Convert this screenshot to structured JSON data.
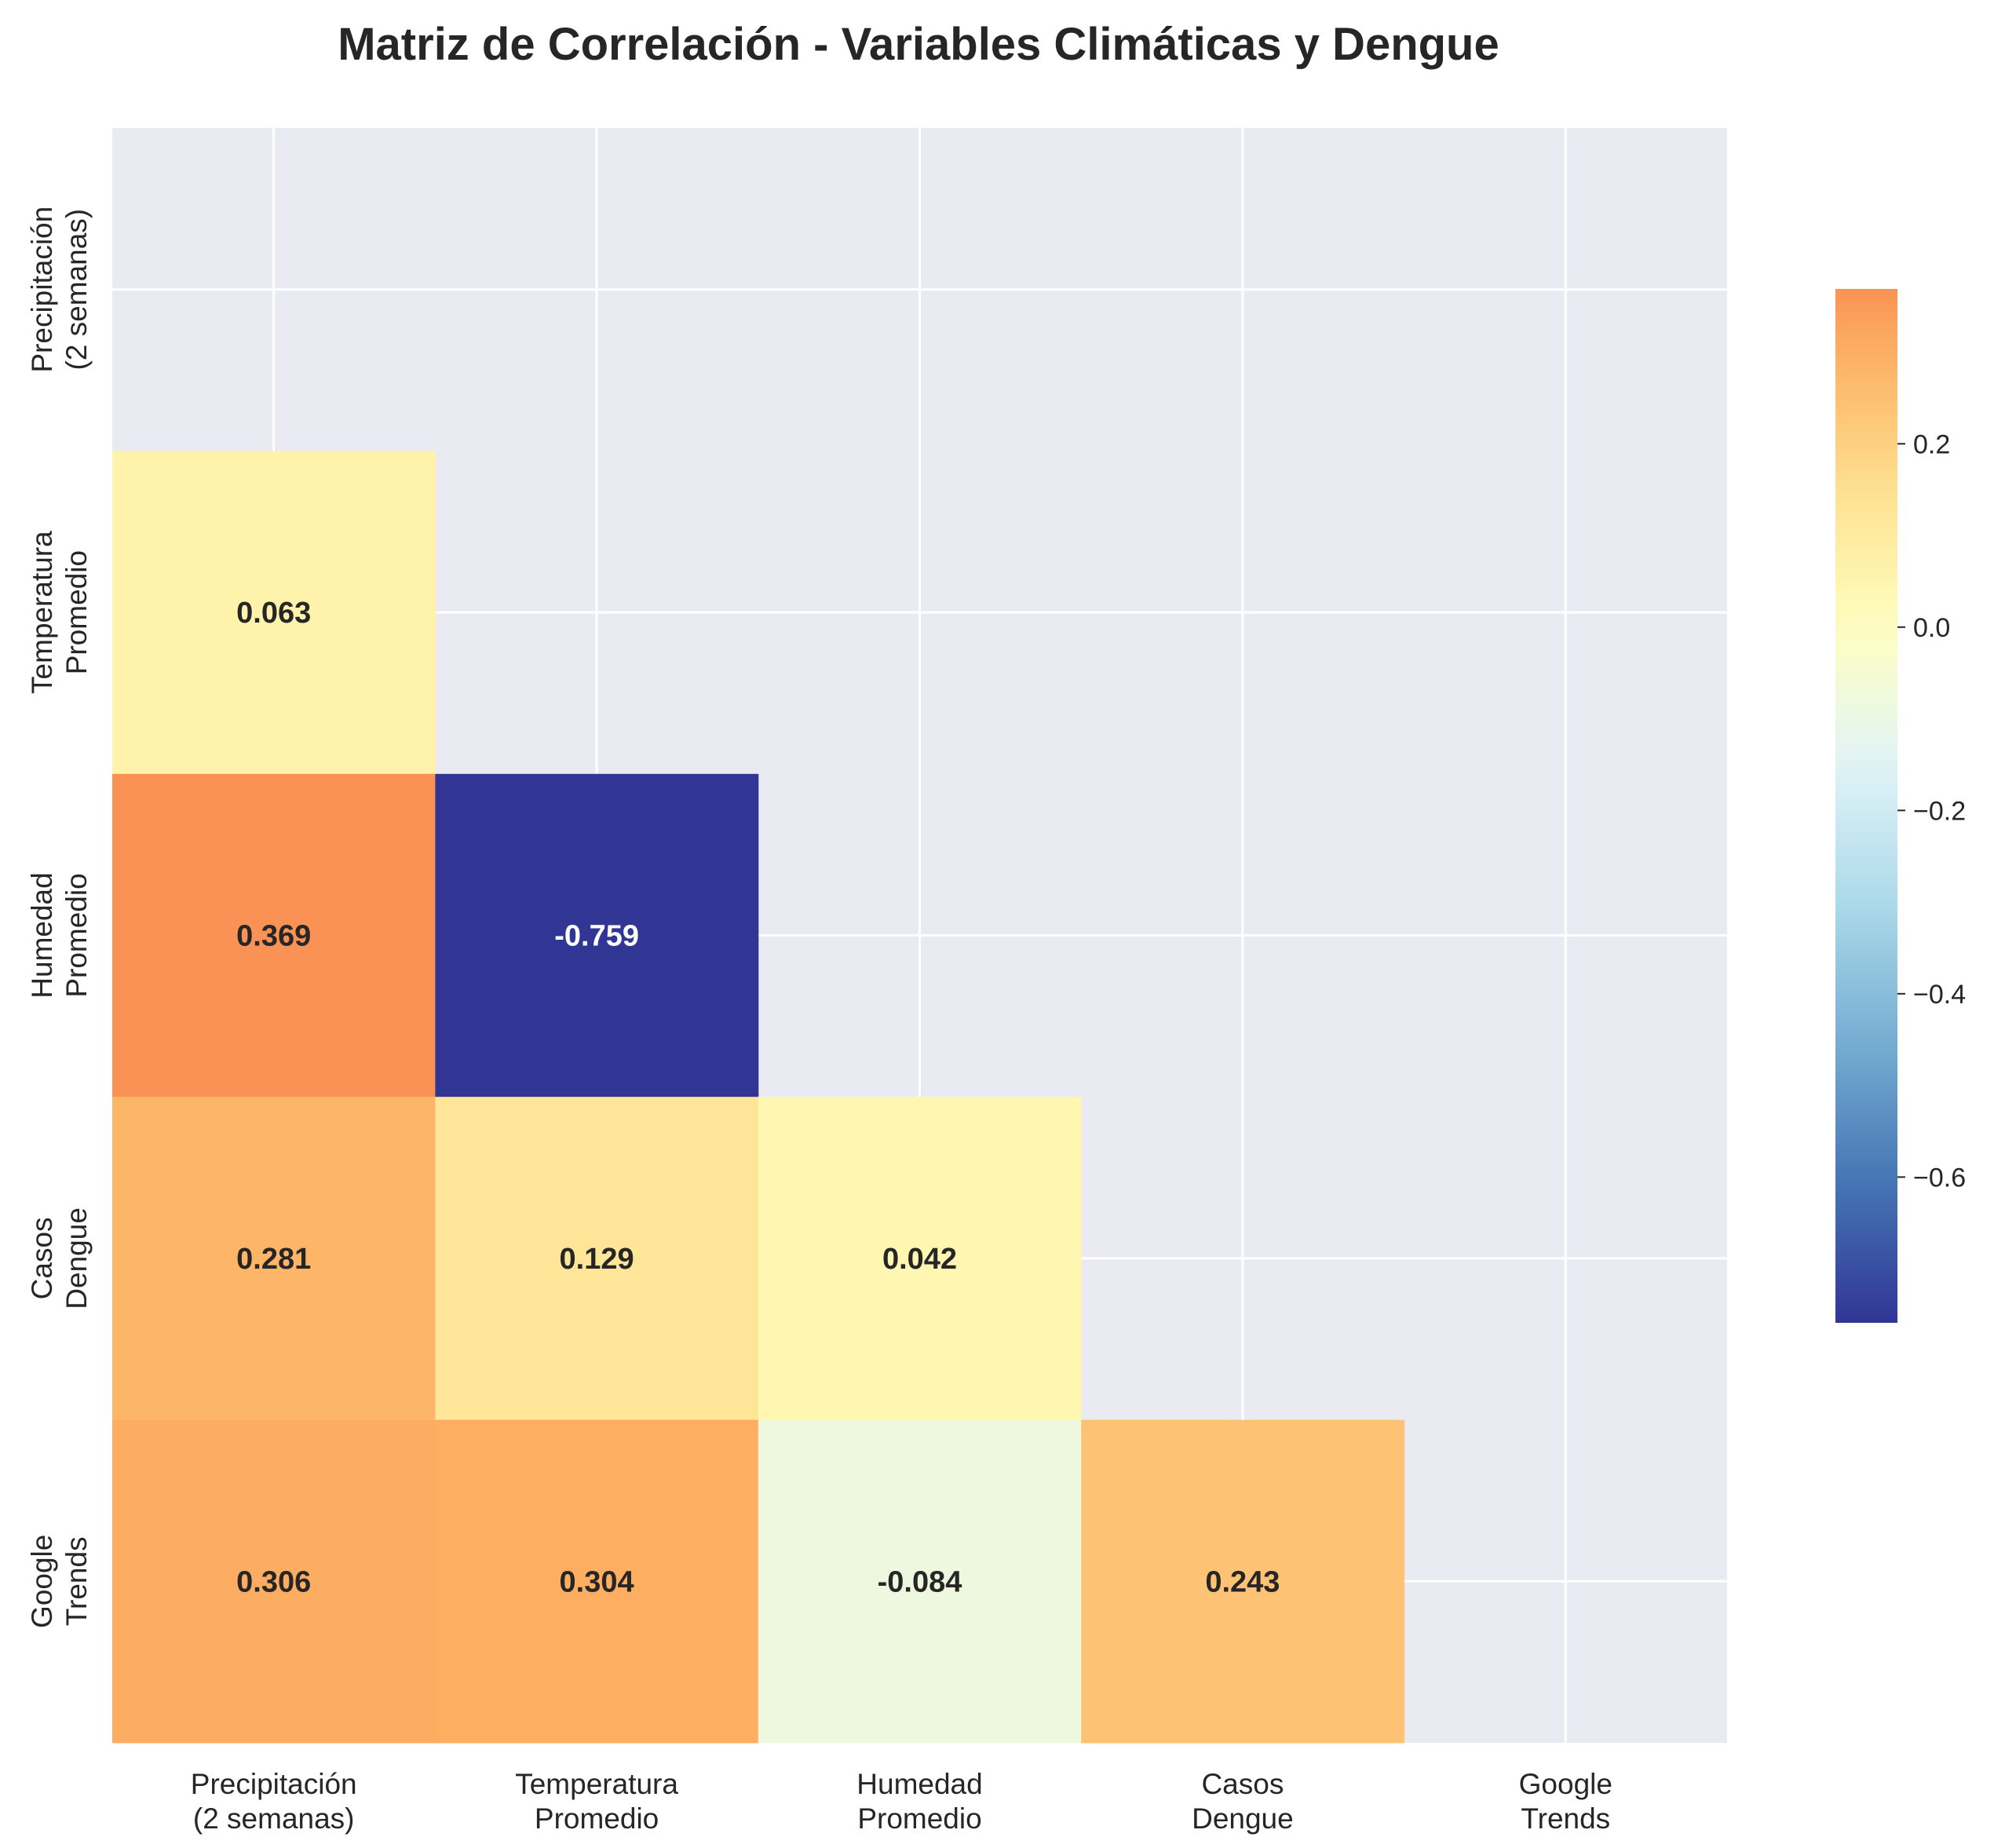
{
  "chart_data": {
    "type": "heatmap",
    "title": "Matriz de Correlación - Variables Climáticas y Dengue",
    "variables": [
      [
        "Precipitación",
        "(2 semanas)"
      ],
      [
        "Temperatura",
        "Promedio"
      ],
      [
        "Humedad",
        "Promedio"
      ],
      [
        "Casos",
        "Dengue"
      ],
      [
        "Google",
        "Trends"
      ]
    ],
    "mask": "upper-triangle-including-diagonal",
    "cells": [
      {
        "row": 1,
        "col": 0,
        "value": 0.063,
        "label": "0.063"
      },
      {
        "row": 2,
        "col": 0,
        "value": 0.369,
        "label": "0.369"
      },
      {
        "row": 2,
        "col": 1,
        "value": -0.759,
        "label": "-0.759"
      },
      {
        "row": 3,
        "col": 0,
        "value": 0.281,
        "label": "0.281"
      },
      {
        "row": 3,
        "col": 1,
        "value": 0.129,
        "label": "0.129"
      },
      {
        "row": 3,
        "col": 2,
        "value": 0.042,
        "label": "0.042"
      },
      {
        "row": 4,
        "col": 0,
        "value": 0.306,
        "label": "0.306"
      },
      {
        "row": 4,
        "col": 1,
        "value": 0.304,
        "label": "0.304"
      },
      {
        "row": 4,
        "col": 2,
        "value": -0.084,
        "label": "-0.084"
      },
      {
        "row": 4,
        "col": 3,
        "value": 0.243,
        "label": "0.243"
      }
    ],
    "colormap": "RdYlBu_r",
    "colorbar": {
      "vmin": -0.759,
      "vmax": 0.369,
      "ticks": [
        0.2,
        0.0,
        -0.2,
        -0.4,
        -0.6
      ],
      "tick_labels": [
        "0.2",
        "0.0",
        "−0.2",
        "−0.4",
        "−0.6"
      ],
      "position": "right"
    },
    "grid": true,
    "colors": {
      "background": "#eaeaf2",
      "grid": "#ffffff",
      "text_dark": "#262626",
      "text_light": "#ffffff"
    }
  }
}
